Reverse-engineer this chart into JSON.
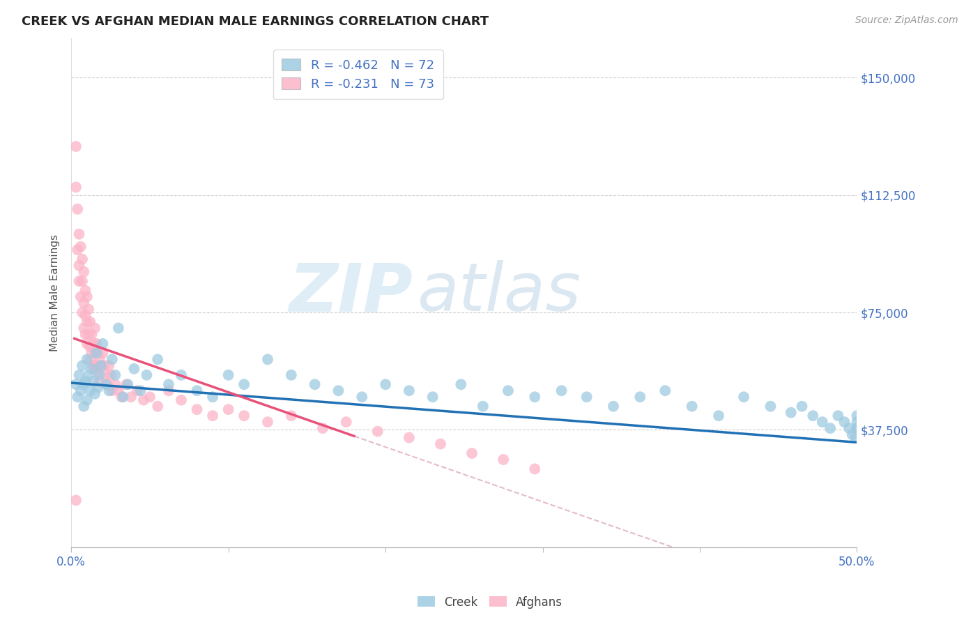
{
  "title": "CREEK VS AFGHAN MEDIAN MALE EARNINGS CORRELATION CHART",
  "source": "Source: ZipAtlas.com",
  "ylabel": "Median Male Earnings",
  "xlim": [
    0.0,
    0.5
  ],
  "ylim": [
    0,
    162500
  ],
  "yticks": [
    0,
    37500,
    75000,
    112500,
    150000
  ],
  "ytick_labels": [
    "",
    "$37,500",
    "$75,000",
    "$112,500",
    "$150,000"
  ],
  "xticks": [
    0.0,
    0.1,
    0.2,
    0.3,
    0.4,
    0.5
  ],
  "xtick_labels": [
    "0.0%",
    "",
    "",
    "",
    "",
    "50.0%"
  ],
  "creek_color": "#9ecae1",
  "afghan_color": "#fcb4c8",
  "creek_line_color": "#2171b5",
  "afghan_line_color": "#e8517a",
  "creek_R": -0.462,
  "creek_N": 72,
  "afghan_R": -0.231,
  "afghan_N": 73,
  "watermark_zip": "ZIP",
  "watermark_atlas": "atlas",
  "creek_scatter_x": [
    0.003,
    0.004,
    0.005,
    0.006,
    0.007,
    0.008,
    0.008,
    0.009,
    0.01,
    0.01,
    0.011,
    0.012,
    0.013,
    0.014,
    0.015,
    0.016,
    0.017,
    0.018,
    0.019,
    0.02,
    0.022,
    0.024,
    0.026,
    0.028,
    0.03,
    0.033,
    0.036,
    0.04,
    0.044,
    0.048,
    0.055,
    0.062,
    0.07,
    0.08,
    0.09,
    0.1,
    0.11,
    0.125,
    0.14,
    0.155,
    0.17,
    0.185,
    0.2,
    0.215,
    0.23,
    0.248,
    0.262,
    0.278,
    0.295,
    0.312,
    0.328,
    0.345,
    0.362,
    0.378,
    0.395,
    0.412,
    0.428,
    0.445,
    0.458,
    0.465,
    0.472,
    0.478,
    0.483,
    0.488,
    0.492,
    0.495,
    0.497,
    0.499,
    0.5,
    0.5,
    0.5,
    0.5
  ],
  "creek_scatter_y": [
    52000,
    48000,
    55000,
    50000,
    58000,
    45000,
    52000,
    53000,
    60000,
    47000,
    55000,
    50000,
    57000,
    53000,
    49000,
    62000,
    51000,
    55000,
    58000,
    65000,
    52000,
    50000,
    60000,
    55000,
    70000,
    48000,
    52000,
    57000,
    50000,
    55000,
    60000,
    52000,
    55000,
    50000,
    48000,
    55000,
    52000,
    60000,
    55000,
    52000,
    50000,
    48000,
    52000,
    50000,
    48000,
    52000,
    45000,
    50000,
    48000,
    50000,
    48000,
    45000,
    48000,
    50000,
    45000,
    42000,
    48000,
    45000,
    43000,
    45000,
    42000,
    40000,
    38000,
    42000,
    40000,
    38000,
    36000,
    35000,
    38000,
    42000,
    40000,
    38000
  ],
  "afghan_scatter_x": [
    0.003,
    0.003,
    0.004,
    0.004,
    0.005,
    0.005,
    0.005,
    0.006,
    0.006,
    0.007,
    0.007,
    0.007,
    0.008,
    0.008,
    0.008,
    0.009,
    0.009,
    0.009,
    0.01,
    0.01,
    0.01,
    0.011,
    0.011,
    0.012,
    0.012,
    0.012,
    0.013,
    0.013,
    0.014,
    0.014,
    0.015,
    0.015,
    0.015,
    0.016,
    0.016,
    0.017,
    0.017,
    0.018,
    0.018,
    0.019,
    0.02,
    0.021,
    0.022,
    0.023,
    0.024,
    0.025,
    0.026,
    0.028,
    0.03,
    0.032,
    0.035,
    0.038,
    0.042,
    0.046,
    0.05,
    0.055,
    0.062,
    0.07,
    0.08,
    0.09,
    0.1,
    0.11,
    0.125,
    0.14,
    0.16,
    0.175,
    0.195,
    0.215,
    0.235,
    0.255,
    0.275,
    0.295,
    0.003
  ],
  "afghan_scatter_y": [
    128000,
    115000,
    108000,
    95000,
    100000,
    90000,
    85000,
    96000,
    80000,
    92000,
    85000,
    75000,
    88000,
    78000,
    70000,
    82000,
    74000,
    68000,
    80000,
    72000,
    65000,
    76000,
    68000,
    72000,
    64000,
    60000,
    68000,
    62000,
    65000,
    58000,
    70000,
    63000,
    57000,
    65000,
    58000,
    62000,
    56000,
    60000,
    53000,
    58000,
    62000,
    58000,
    55000,
    52000,
    58000,
    55000,
    50000,
    52000,
    50000,
    48000,
    52000,
    48000,
    50000,
    47000,
    48000,
    45000,
    50000,
    47000,
    44000,
    42000,
    44000,
    42000,
    40000,
    42000,
    38000,
    40000,
    37000,
    35000,
    33000,
    30000,
    28000,
    25000,
    15000
  ],
  "afghan_line_x_end": 0.18,
  "creek_line_intercept": 52500,
  "creek_line_slope": -38000,
  "afghan_line_intercept": 67000,
  "afghan_line_slope": -175000
}
